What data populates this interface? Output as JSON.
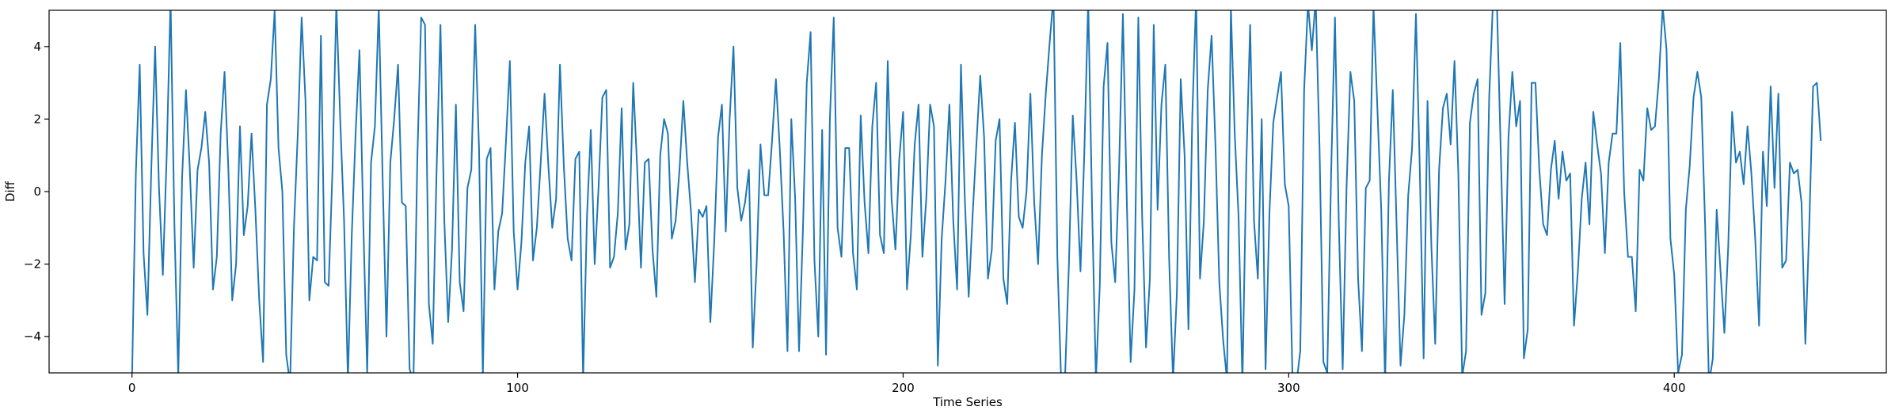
{
  "chart_data": {
    "type": "line",
    "title": "",
    "xlabel": "Time Series",
    "ylabel": "Diff",
    "xlim": [
      -21.5,
      455
    ],
    "ylim": [
      -5,
      5
    ],
    "grid": false,
    "legend": "none",
    "line_color": "#1f77b4",
    "x_ticks": [
      0,
      100,
      200,
      300,
      400
    ],
    "y_ticks": [
      -4,
      -2,
      0,
      2,
      4
    ],
    "x_tick_labels": [
      "0",
      "100",
      "200",
      "300",
      "400"
    ],
    "y_tick_labels": [
      "−4",
      "−2",
      "0",
      "2",
      "4"
    ],
    "series": [
      {
        "name": "",
        "values": [
          -5.2,
          0.5,
          3.5,
          -1.7,
          -3.4,
          0.6,
          4.0,
          0.1,
          -2.3,
          1.0,
          5.3,
          -0.9,
          -5.1,
          0.4,
          2.8,
          0.6,
          -2.1,
          0.6,
          1.2,
          2.2,
          0.8,
          -2.7,
          -1.8,
          1.6,
          3.3,
          0.6,
          -3.0,
          -2.0,
          1.8,
          -1.2,
          -0.4,
          1.6,
          -0.5,
          -3.0,
          -4.7,
          2.4,
          3.1,
          5.0,
          1.2,
          0.0,
          -4.5,
          -5.3,
          -1.0,
          1.6,
          4.8,
          2.5,
          -3.0,
          -1.8,
          -1.9,
          4.3,
          -2.5,
          -2.6,
          0.6,
          5.2,
          2.0,
          -0.8,
          -5.2,
          -1.2,
          1.6,
          3.9,
          -0.9,
          -5.0,
          0.8,
          1.8,
          5.1,
          0.4,
          -4.0,
          0.8,
          2.0,
          3.5,
          -0.3,
          -0.4,
          -4.9,
          -5.2,
          0.9,
          4.8,
          4.6,
          -3.1,
          -4.2,
          0.6,
          4.6,
          -0.8,
          -3.6,
          -1.6,
          2.4,
          -2.5,
          -3.3,
          0.1,
          0.6,
          4.6,
          1.2,
          -5.1,
          0.9,
          1.2,
          -2.7,
          -1.1,
          -0.6,
          1.4,
          3.6,
          -1.1,
          -2.7,
          -1.4,
          0.8,
          1.8,
          -1.9,
          -1.0,
          0.8,
          2.7,
          0.7,
          -1.0,
          -0.2,
          3.5,
          0.7,
          -1.3,
          -1.9,
          0.9,
          1.1,
          -5.2,
          -0.7,
          1.7,
          -2.0,
          0.1,
          2.6,
          2.8,
          -2.1,
          -1.8,
          -0.6,
          2.3,
          -1.6,
          -0.9,
          3.0,
          0.7,
          -2.1,
          0.8,
          0.9,
          -1.6,
          -2.9,
          1.0,
          2.0,
          1.6,
          -1.3,
          -0.8,
          0.6,
          2.5,
          0.8,
          -0.6,
          -2.5,
          -0.5,
          -0.7,
          -0.4,
          -3.6,
          -1.4,
          1.5,
          2.4,
          -1.1,
          2.0,
          4.0,
          0.1,
          -0.8,
          -0.3,
          0.6,
          -4.3,
          -2.0,
          1.3,
          -0.1,
          -0.1,
          1.4,
          3.1,
          1.2,
          -1.1,
          -4.4,
          2.0,
          -0.2,
          -4.4,
          -1.1,
          3.0,
          4.4,
          -1.9,
          -4.0,
          1.7,
          -4.5,
          2.0,
          4.8,
          -1.0,
          -1.8,
          1.2,
          1.2,
          -1.7,
          -2.7,
          2.1,
          -0.3,
          -1.7,
          1.8,
          3.0,
          -1.2,
          -1.7,
          3.6,
          -0.2,
          -1.6,
          0.9,
          2.2,
          -2.7,
          -1.2,
          1.3,
          2.4,
          -1.8,
          -0.2,
          2.4,
          1.8,
          -4.8,
          -1.3,
          0.3,
          2.4,
          -0.8,
          -2.7,
          3.5,
          -0.2,
          -2.9,
          -0.7,
          1.3,
          3.2,
          1.5,
          -2.4,
          -1.6,
          1.4,
          2.0,
          -2.4,
          -3.1,
          0.3,
          1.9,
          -0.7,
          -1.0,
          0.0,
          2.7,
          -0.3,
          -2.0,
          1.0,
          2.7,
          4.1,
          5.4,
          -1.8,
          -5.3,
          -5.1,
          -2.0,
          2.1,
          0.3,
          -2.2,
          1.1,
          5.3,
          -0.4,
          -5.2,
          -2.6,
          2.9,
          4.1,
          -1.4,
          -2.5,
          0.6,
          4.9,
          -0.2,
          -4.7,
          -2.7,
          4.8,
          -0.7,
          -4.3,
          -2.4,
          4.6,
          -0.5,
          2.4,
          3.5,
          -1.9,
          -5.2,
          -2.8,
          3.1,
          1.0,
          -3.8,
          2.1,
          5.4,
          -2.4,
          -0.8,
          2.8,
          4.3,
          1.3,
          -2.5,
          -4.1,
          -5.2,
          5.1,
          1.6,
          -0.7,
          -5.3,
          0.7,
          4.6,
          -0.8,
          -2.4,
          2.0,
          -4.9,
          -0.6,
          1.9,
          2.6,
          3.3,
          0.2,
          -0.4,
          -5.2,
          -5.3,
          -4.4,
          2.8,
          5.2,
          3.9,
          5.3,
          1.2,
          -4.7,
          -5.0,
          0.5,
          4.8,
          -0.9,
          -4.9,
          0.1,
          3.3,
          2.5,
          -2.4,
          -4.4,
          0.1,
          0.3,
          5.1,
          2.3,
          -0.5,
          -5.3,
          0.3,
          2.8,
          -1.0,
          -4.8,
          -3.4,
          -0.1,
          1.2,
          4.9,
          0.6,
          -4.6,
          2.5,
          -1.5,
          -4.2,
          0.6,
          2.3,
          2.7,
          1.3,
          3.6,
          0.5,
          -5.1,
          -4.4,
          1.9,
          2.7,
          3.1,
          -3.4,
          -2.8,
          2.6,
          5.3,
          5.2,
          1.1,
          -3.1,
          1.5,
          3.3,
          1.8,
          2.5,
          -4.6,
          -3.8,
          3.0,
          3.0,
          0.6,
          -0.9,
          -1.2,
          0.6,
          1.4,
          -0.2,
          1.1,
          0.3,
          0.5,
          -3.7,
          -2.2,
          -0.2,
          0.8,
          -0.9,
          2.2,
          1.3,
          0.5,
          -1.7,
          0.8,
          1.6,
          1.6,
          4.1,
          0.0,
          -1.8,
          -1.8,
          -3.3,
          0.6,
          0.3,
          2.3,
          1.7,
          1.8,
          3.1,
          5.1,
          3.9,
          -1.3,
          -2.3,
          -5.0,
          -4.5,
          -0.5,
          0.7,
          2.6,
          3.3,
          2.6,
          -0.9,
          -5.3,
          -4.6,
          -0.5,
          -2.2,
          -3.9,
          -1.5,
          2.2,
          0.8,
          1.1,
          0.2,
          1.8,
          0.5,
          -1.3,
          -3.7,
          1.1,
          -0.4,
          2.9,
          0.1,
          2.7,
          -2.1,
          -1.9,
          0.8,
          0.5,
          0.6,
          -0.3,
          -4.2,
          -1.0,
          2.9,
          3.0,
          1.4
        ]
      }
    ]
  }
}
